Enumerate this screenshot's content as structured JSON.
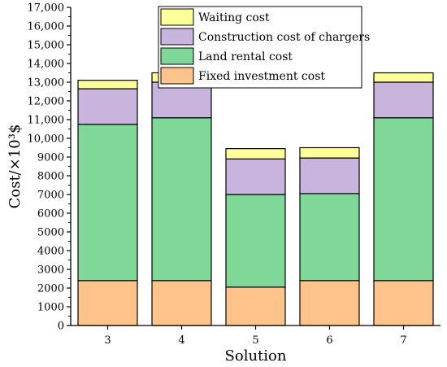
{
  "chart_data": {
    "type": "bar",
    "stacked": true,
    "categories": [
      "3",
      "4",
      "5",
      "6",
      "7"
    ],
    "series": [
      {
        "name": "Fixed investment cost",
        "color": "#FFC48C",
        "values": [
          2400,
          2400,
          2050,
          2400,
          2400
        ]
      },
      {
        "name": "Land rental cost",
        "color": "#80D898",
        "values": [
          8350,
          8700,
          4950,
          4650,
          8700
        ]
      },
      {
        "name": "Construction cost of chargers",
        "color": "#C8B4DC",
        "values": [
          1900,
          1900,
          1900,
          1900,
          1900
        ]
      },
      {
        "name": "Waiting cost",
        "color": "#FFFF99",
        "values": [
          450,
          500,
          550,
          550,
          500
        ]
      }
    ],
    "xlabel": "Solution",
    "ylabel": "Cost/×10³$",
    "ylim": [
      0,
      17000
    ],
    "yticks": [
      0,
      1000,
      2000,
      3000,
      4000,
      5000,
      6000,
      7000,
      8000,
      9000,
      10000,
      11000,
      12000,
      13000,
      14000,
      15000,
      16000,
      17000
    ],
    "ytick_labels": [
      "0",
      "1000",
      "2000",
      "3000",
      "4000",
      "5000",
      "6000",
      "7000",
      "8000",
      "9000",
      "10,000",
      "11,000",
      "12,000",
      "13,000",
      "14,000",
      "15,000",
      "16,000",
      "17,000"
    ],
    "grid": false,
    "legend": {
      "placement": "top-right",
      "order": [
        "Waiting cost",
        "Construction cost of chargers",
        "Land rental cost",
        "Fixed investment cost"
      ]
    }
  }
}
